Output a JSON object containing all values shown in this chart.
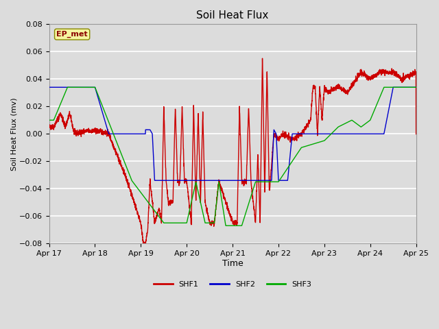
{
  "title": "Soil Heat Flux",
  "xlabel": "Time",
  "ylabel": "Soil Heat Flux (mv)",
  "ylim": [
    -0.08,
    0.08
  ],
  "yticks": [
    -0.08,
    -0.06,
    -0.04,
    -0.02,
    0.0,
    0.02,
    0.04,
    0.06,
    0.08
  ],
  "background_color": "#dcdcdc",
  "plot_bg_color": "#dcdcdc",
  "grid_color": "#ffffff",
  "shf1_color": "#cc0000",
  "shf2_color": "#0000cc",
  "shf3_color": "#00aa00",
  "legend_label1": "SHF1",
  "legend_label2": "SHF2",
  "legend_label3": "SHF3",
  "annotation_text": "EP_met",
  "annotation_color": "#8b0000",
  "annotation_bg": "#f5f5a0",
  "xtick_labels": [
    "Apr 17",
    "Apr 18",
    "Apr 19",
    "Apr 20",
    "Apr 21",
    "Apr 22",
    "Apr 23",
    "Apr 24",
    "Apr 25"
  ],
  "title_fontsize": 11,
  "axis_fontsize": 8,
  "tick_fontsize": 8
}
